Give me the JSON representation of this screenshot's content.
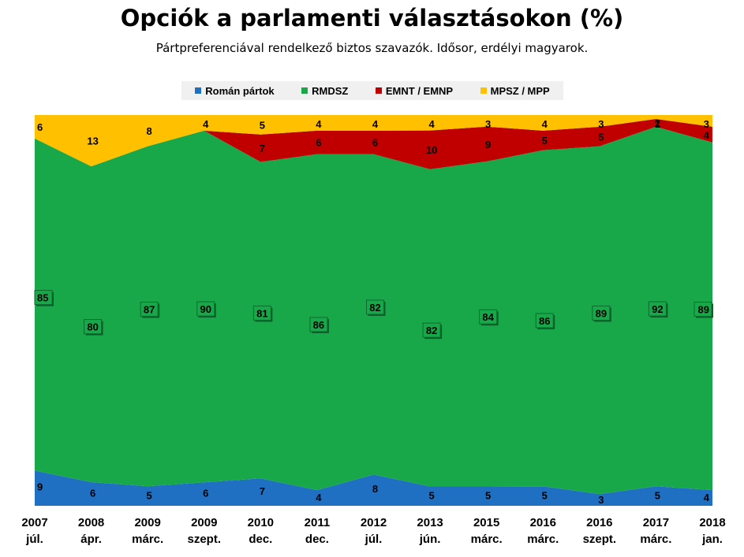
{
  "title": "Opciók a parlamenti választásokon (%)",
  "subtitle": "Pártpreferenciával rendelkező biztos szavazók. Idősor, erdélyi magyarok.",
  "chart_data": {
    "type": "area",
    "stacked": true,
    "ylim": [
      0,
      100
    ],
    "grid": false,
    "legend_position": "top",
    "categories": [
      [
        "2007",
        "júl."
      ],
      [
        "2008",
        "ápr."
      ],
      [
        "2009",
        "márc."
      ],
      [
        "2009",
        "szept."
      ],
      [
        "2010",
        "dec."
      ],
      [
        "2011",
        "dec."
      ],
      [
        "2012",
        "júl."
      ],
      [
        "2013",
        "jún."
      ],
      [
        "2015",
        "márc."
      ],
      [
        "2016",
        "márc."
      ],
      [
        "2016",
        "szept."
      ],
      [
        "2017",
        "márc."
      ],
      [
        "2018",
        "jan."
      ]
    ],
    "series": [
      {
        "name": "Román pártok",
        "color": "#1f6fc2",
        "values": [
          9,
          6,
          5,
          6,
          7,
          4,
          8,
          5,
          5,
          5,
          3,
          5,
          4
        ]
      },
      {
        "name": "RMDSZ",
        "color": "#18a84a",
        "values": [
          85,
          80,
          87,
          90,
          81,
          86,
          82,
          82,
          84,
          86,
          89,
          92,
          89
        ]
      },
      {
        "name": "EMNT / EMNP",
        "color": "#c00000",
        "values": [
          null,
          null,
          null,
          null,
          7,
          6,
          6,
          10,
          9,
          5,
          5,
          2,
          4
        ]
      },
      {
        "name": "MPSZ / MPP",
        "color": "#ffc000",
        "values": [
          6,
          13,
          8,
          4,
          5,
          4,
          4,
          4,
          3,
          4,
          3,
          1,
          3
        ]
      }
    ]
  }
}
